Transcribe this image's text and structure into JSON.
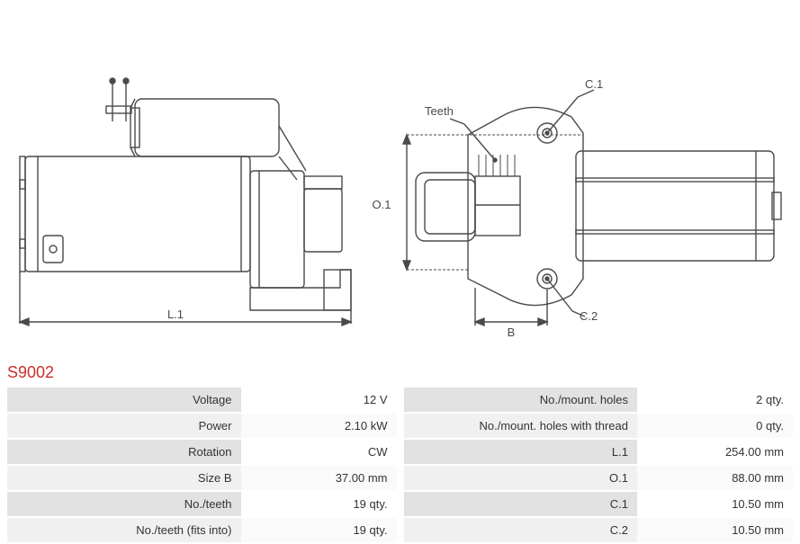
{
  "part_code": "S9002",
  "part_code_color": "#c9302c",
  "diagram": {
    "stroke": "#4a4a4a",
    "stroke_width": 1.4,
    "annotation_font_size": 13,
    "annotation_color": "#4a4a4a",
    "labels": {
      "L1": "L.1",
      "O1": "O.1",
      "B": "B",
      "C1": "C.1",
      "C2": "C.2",
      "Teeth": "Teeth"
    }
  },
  "spec_left": [
    {
      "label": "Voltage",
      "value": "12 V"
    },
    {
      "label": "Power",
      "value": "2.10 kW"
    },
    {
      "label": "Rotation",
      "value": "CW"
    },
    {
      "label": "Size B",
      "value": "37.00 mm"
    },
    {
      "label": "No./teeth",
      "value": "19 qty."
    },
    {
      "label": "No./teeth (fits into)",
      "value": "19 qty."
    }
  ],
  "spec_right": [
    {
      "label": "No./mount. holes",
      "value": "2 qty."
    },
    {
      "label": "No./mount. holes with thread",
      "value": "0 qty."
    },
    {
      "label": "L.1",
      "value": "254.00 mm"
    },
    {
      "label": "O.1",
      "value": "88.00 mm"
    },
    {
      "label": "C.1",
      "value": "10.50 mm"
    },
    {
      "label": "C.2",
      "value": "10.50 mm"
    }
  ],
  "table_style": {
    "row_alt_a_bg": "#e2e2e2",
    "row_alt_b_bg": "#f0f0f0",
    "font_size": 13
  }
}
